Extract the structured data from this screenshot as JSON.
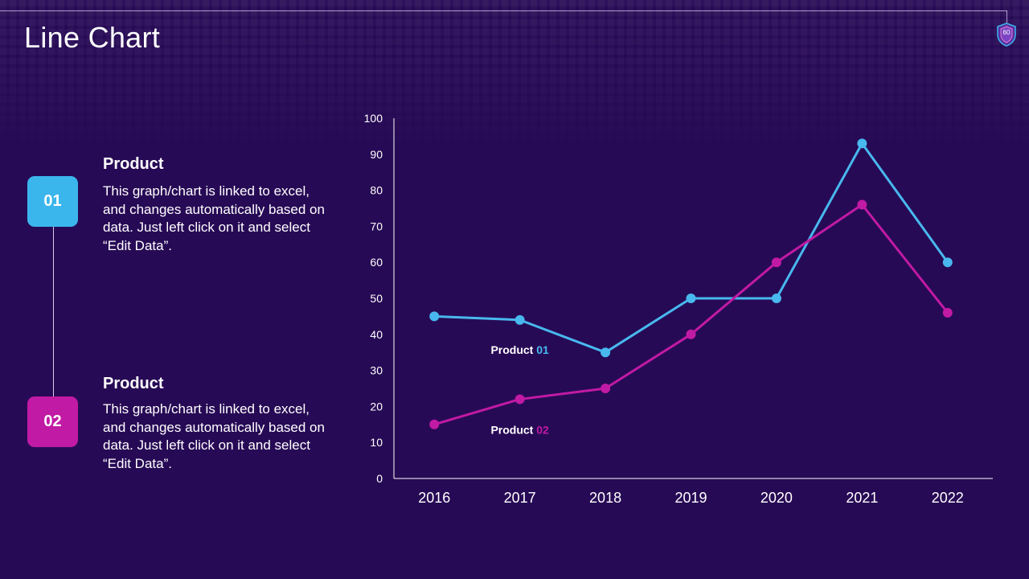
{
  "page": {
    "title": "Line Chart",
    "page_number": "60"
  },
  "items": [
    {
      "number": "01",
      "heading": "Product",
      "body": "This graph/chart is linked to excel, and changes automatically based on data. Just left click on it and select “Edit Data”.",
      "color": "#3bb6ec"
    },
    {
      "number": "02",
      "heading": "Product",
      "body": "This graph/chart is linked to excel, and changes automatically based on data. Just left click on it and select “Edit Data”.",
      "color": "#c11aa4"
    }
  ],
  "chart_data": {
    "type": "line",
    "title": "",
    "xlabel": "",
    "ylabel": "",
    "categories": [
      "2016",
      "2017",
      "2018",
      "2019",
      "2020",
      "2021",
      "2022"
    ],
    "ylim": [
      0,
      100
    ],
    "yticks": [
      "0",
      "10",
      "20",
      "30",
      "40",
      "50",
      "60",
      "70",
      "80",
      "90",
      "100"
    ],
    "grid": false,
    "series": [
      {
        "name": "Product 01",
        "label_prefix": "Product ",
        "label_suffix": "01",
        "color": "#48b8ee",
        "values": [
          45,
          44,
          35,
          50,
          50,
          93,
          60
        ]
      },
      {
        "name": "Product 02",
        "label_prefix": "Product ",
        "label_suffix": "02",
        "color": "#c11aa4",
        "values": [
          15,
          22,
          25,
          40,
          60,
          76,
          46
        ]
      }
    ]
  }
}
